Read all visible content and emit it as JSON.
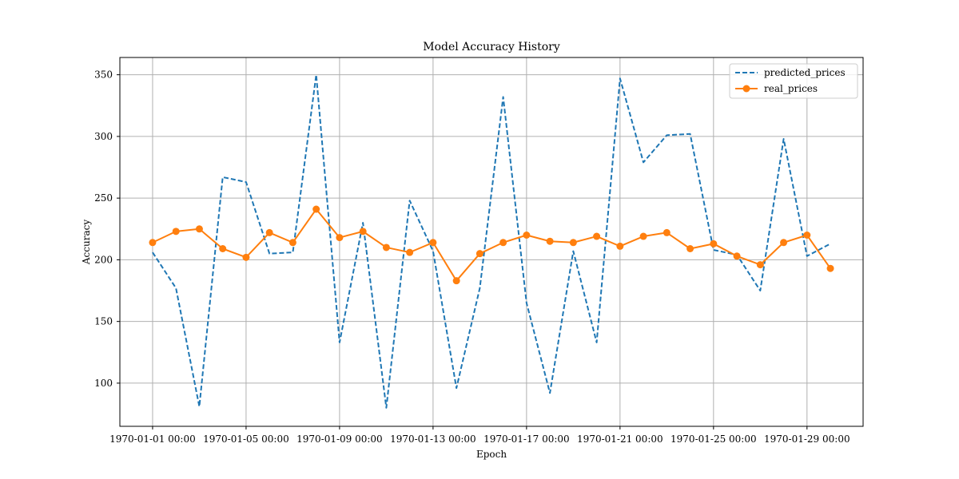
{
  "chart_data": {
    "type": "line",
    "title": "Model Accuracy History",
    "xlabel": "Epoch",
    "ylabel": "Accuracy",
    "x_ticks": [
      "1970-01-01 00:00",
      "1970-01-05 00:00",
      "1970-01-09 00:00",
      "1970-01-13 00:00",
      "1970-01-17 00:00",
      "1970-01-21 00:00",
      "1970-01-25 00:00",
      "1970-01-29 00:00"
    ],
    "y_ticks": [
      100,
      150,
      200,
      250,
      300,
      350
    ],
    "ylim": [
      65,
      364
    ],
    "xlim": [
      "1969-12-30 14:24",
      "1970-01-31 09:36"
    ],
    "grid": true,
    "legend_position": "top-right",
    "x": [
      "1970-01-01",
      "1970-01-02",
      "1970-01-03",
      "1970-01-04",
      "1970-01-05",
      "1970-01-06",
      "1970-01-07",
      "1970-01-08",
      "1970-01-09",
      "1970-01-10",
      "1970-01-11",
      "1970-01-12",
      "1970-01-13",
      "1970-01-14",
      "1970-01-15",
      "1970-01-16",
      "1970-01-17",
      "1970-01-18",
      "1970-01-19",
      "1970-01-20",
      "1970-01-21",
      "1970-01-22",
      "1970-01-23",
      "1970-01-24",
      "1970-01-25",
      "1970-01-26",
      "1970-01-27",
      "1970-01-28",
      "1970-01-29",
      "1970-01-30"
    ],
    "series": [
      {
        "name": "predicted_prices",
        "color": "#1f77b4",
        "style": "dashed",
        "values": [
          206,
          177,
          81,
          267,
          263,
          205,
          206,
          350,
          133,
          230,
          80,
          248,
          207,
          96,
          177,
          332,
          165,
          92,
          207,
          133,
          347,
          279,
          301,
          302,
          208,
          204,
          175,
          298,
          203,
          213
        ]
      },
      {
        "name": "real_prices",
        "color": "#ff7f0e",
        "style": "solid",
        "marker": "circle",
        "values": [
          214,
          223,
          225,
          209,
          202,
          222,
          214,
          241,
          218,
          223,
          210,
          206,
          214,
          183,
          205,
          214,
          220,
          215,
          214,
          219,
          211,
          219,
          222,
          209,
          213,
          203,
          196,
          214,
          220,
          193
        ]
      }
    ]
  }
}
